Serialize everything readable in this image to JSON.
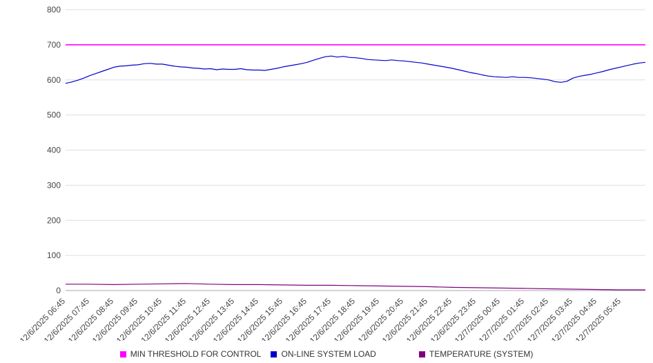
{
  "chart_data": {
    "type": "line",
    "title": "",
    "xlabel": "",
    "ylabel": "",
    "ylim": [
      0,
      800
    ],
    "y_ticks": [
      0,
      100,
      200,
      300,
      400,
      500,
      600,
      700,
      800
    ],
    "grid": true,
    "legend_position": "bottom",
    "x_labels": [
      "12/6/2025 06:45",
      "12/6/2025 07:45",
      "12/6/2025 08:45",
      "12/6/2025 09:45",
      "12/6/2025 10:45",
      "12/6/2025 11:45",
      "12/6/2025 12:45",
      "12/6/2025 13:45",
      "12/6/2025 14:45",
      "12/6/2025 15:45",
      "12/6/2025 16:45",
      "12/6/2025 17:45",
      "12/6/2025 18:45",
      "12/6/2025 19:45",
      "12/6/2025 20:45",
      "12/6/2025 21:45",
      "12/6/2025 22:45",
      "12/6/2025 23:45",
      "12/7/2025 00:45",
      "12/7/2025 01:45",
      "12/7/2025 02:45",
      "12/7/2025 03:45",
      "12/7/2025 04:45",
      "12/7/2025 05:45"
    ],
    "series": [
      {
        "name": "MIN THRESHOLD FOR CONTROL",
        "color": "#ff00ff",
        "values": [
          700,
          700
        ]
      },
      {
        "name": "ON-LINE SYSTEM LOAD",
        "color": "#0000cd",
        "values": [
          590,
          594,
          599,
          605,
          612,
          618,
          624,
          630,
          636,
          639,
          640,
          642,
          643,
          646,
          647,
          645,
          645,
          642,
          639,
          637,
          636,
          634,
          633,
          631,
          632,
          629,
          631,
          630,
          630,
          632,
          629,
          628,
          628,
          627,
          630,
          633,
          637,
          640,
          643,
          646,
          650,
          656,
          661,
          666,
          668,
          665,
          667,
          664,
          663,
          661,
          658,
          657,
          656,
          655,
          657,
          655,
          654,
          652,
          650,
          648,
          645,
          642,
          639,
          636,
          633,
          629,
          625,
          621,
          618,
          614,
          611,
          609,
          608,
          607,
          609,
          607,
          607,
          606,
          604,
          602,
          600,
          595,
          593,
          596,
          605,
          610,
          613,
          616,
          620,
          624,
          629,
          633,
          637,
          641,
          645,
          648,
          650
        ]
      },
      {
        "name": "TEMPERATURE (SYSTEM)",
        "color": "#800080",
        "values": [
          18,
          18,
          17,
          18,
          19,
          20,
          18,
          17,
          17,
          16,
          15,
          15,
          14,
          13,
          12,
          11,
          9,
          8,
          7,
          6,
          5,
          4,
          3,
          2,
          2
        ]
      }
    ]
  }
}
